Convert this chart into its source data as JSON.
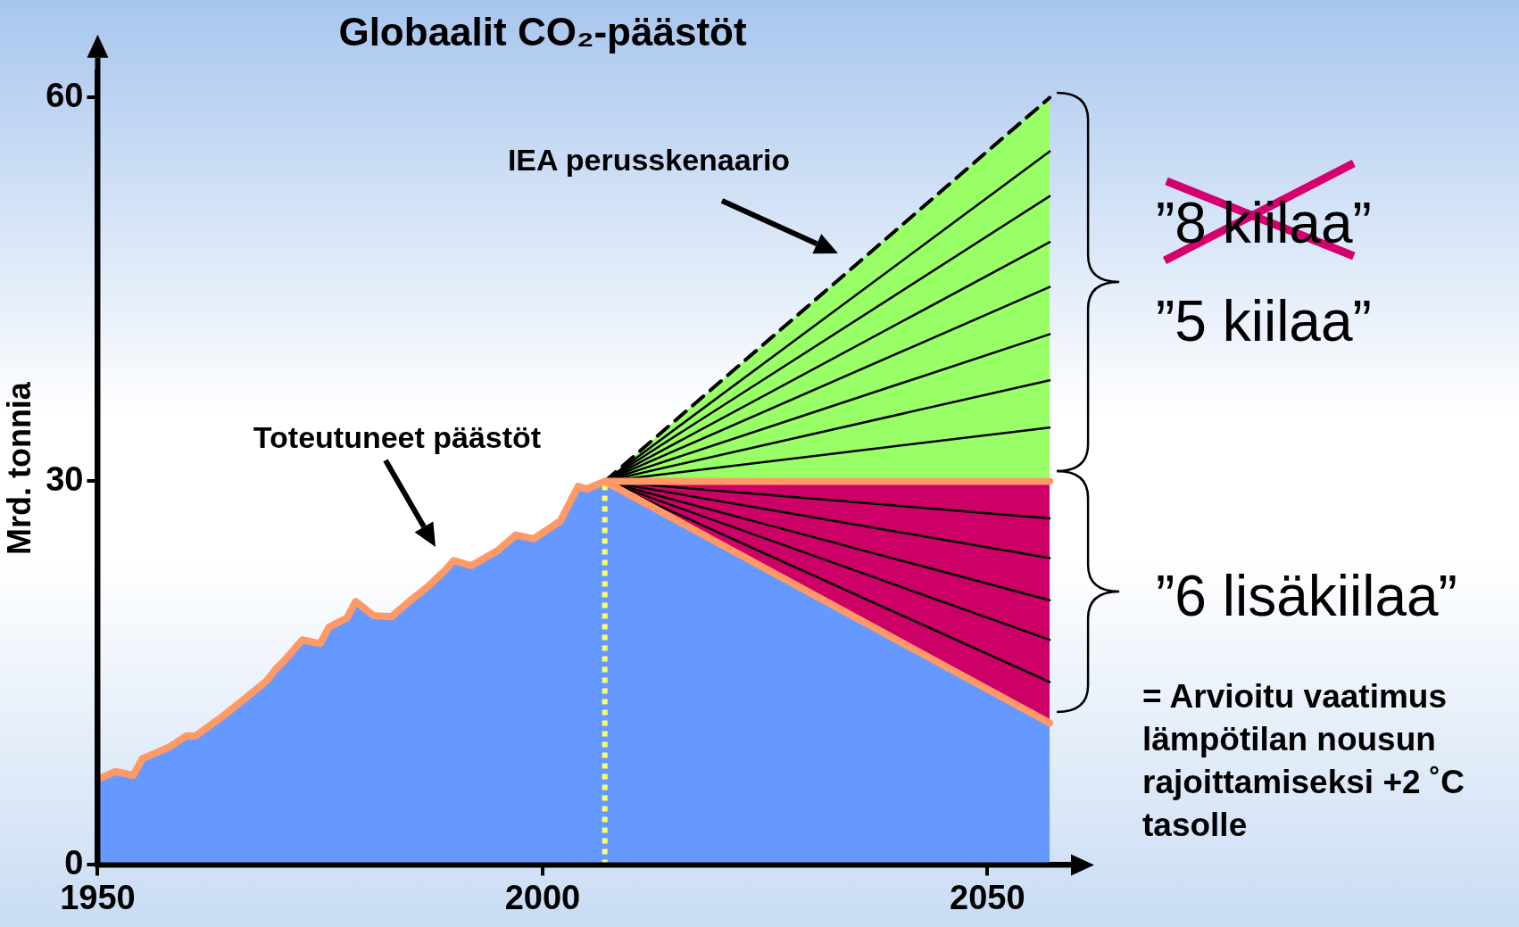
{
  "chart_data": {
    "type": "area",
    "title": "Globaalit CO₂-päästöt",
    "ylabel": "Mrd. tonnia",
    "xlim": [
      1950,
      2061
    ],
    "xticks": [
      1950,
      2000,
      2050
    ],
    "ylim": [
      0,
      62
    ],
    "yticks": [
      0,
      30,
      60
    ],
    "grid": false,
    "legend": false,
    "marker": "none",
    "series": [
      {
        "color": "#99ff66",
        "x": [
          2007,
          2057
        ],
        "values": [
          30,
          60
        ],
        "line_style": "dashed"
      },
      {
        "color": "#cc0066",
        "x": [
          2007,
          2057
        ],
        "values": [
          30,
          11.1
        ]
      },
      {
        "color": "#6699ff",
        "x": [
          1950,
          1952,
          1954,
          1955,
          1957,
          1958,
          1960,
          1961,
          1964,
          1966,
          1969,
          1970,
          1971,
          1973,
          1975,
          1976,
          1978,
          1979,
          1981,
          1983,
          1985,
          1987,
          1989,
          1990,
          1992,
          1995,
          1997,
          1999,
          2002,
          2004,
          2005,
          2007,
          2057
        ],
        "values": [
          6.7,
          7.3,
          7.0,
          8.3,
          8.9,
          9.2,
          10.1,
          10.1,
          11.6,
          12.7,
          14.4,
          15.3,
          16.0,
          17.6,
          17.3,
          18.6,
          19.3,
          20.6,
          19.5,
          19.4,
          20.6,
          21.7,
          23.0,
          23.8,
          23.4,
          24.6,
          25.8,
          25.5,
          26.9,
          29.6,
          29.4,
          30.0,
          11.1
        ]
      },
      {
        "type": "line",
        "color": "#000000",
        "x": [
          2007,
          2057
        ],
        "values": [
          30,
          34.2
        ]
      },
      {
        "type": "line",
        "color": "#000000",
        "x": [
          2007,
          2057
        ],
        "values": [
          30,
          37.9
        ]
      },
      {
        "type": "line",
        "color": "#000000",
        "x": [
          2007,
          2057
        ],
        "values": [
          30,
          41.5
        ]
      },
      {
        "type": "line",
        "color": "#000000",
        "x": [
          2007,
          2057
        ],
        "values": [
          30,
          45.2
        ]
      },
      {
        "type": "line",
        "color": "#000000",
        "x": [
          2007,
          2057
        ],
        "values": [
          30,
          48.7
        ]
      },
      {
        "type": "line",
        "color": "#000000",
        "x": [
          2007,
          2057
        ],
        "values": [
          30,
          52.3
        ]
      },
      {
        "type": "line",
        "color": "#000000",
        "x": [
          2007,
          2057
        ],
        "values": [
          30,
          55.8
        ]
      },
      {
        "type": "line",
        "color": "#000000",
        "x": [
          2007,
          2057
        ],
        "values": [
          30,
          27.1
        ]
      },
      {
        "type": "line",
        "color": "#000000",
        "x": [
          2007,
          2057
        ],
        "values": [
          30,
          24.0
        ]
      },
      {
        "type": "line",
        "color": "#000000",
        "x": [
          2007,
          2057
        ],
        "values": [
          30,
          20.7
        ]
      },
      {
        "type": "line",
        "color": "#000000",
        "x": [
          2007,
          2057
        ],
        "values": [
          30,
          17.6
        ]
      },
      {
        "type": "line",
        "color": "#000000",
        "x": [
          2007,
          2057
        ],
        "values": [
          30,
          14.3
        ]
      },
      {
        "type": "line",
        "color": "#ff9966",
        "x": [
          1950,
          1952,
          1954,
          1955,
          1957,
          1958,
          1960,
          1961,
          1964,
          1966,
          1969,
          1970,
          1971,
          1973,
          1975,
          1976,
          1978,
          1979,
          1981,
          1983,
          1985,
          1987,
          1989,
          1990,
          1992,
          1995,
          1997,
          1999,
          2002,
          2004,
          2005,
          2007,
          2057
        ],
        "values": [
          6.7,
          7.3,
          7.0,
          8.3,
          8.9,
          9.2,
          10.1,
          10.1,
          11.6,
          12.7,
          14.4,
          15.3,
          16.0,
          17.6,
          17.3,
          18.6,
          19.3,
          20.6,
          19.5,
          19.4,
          20.6,
          21.7,
          23.0,
          23.8,
          23.4,
          24.6,
          25.8,
          25.5,
          26.9,
          29.6,
          29.4,
          30.0,
          11.1
        ]
      },
      {
        "type": "line",
        "color": "#ff9966",
        "x": [
          2007,
          2057
        ],
        "values": [
          30,
          30
        ]
      }
    ],
    "ref_lines": [
      {
        "axis": "x",
        "value": 2007,
        "color": "#ffff66",
        "line_style": "dotted"
      }
    ],
    "annotations": [
      "IEA perusskenaario",
      "Toteutuneet päästöt",
      "”8 kiilaa”",
      "”5 kiilaa”",
      "”6 lisäkiilaa”",
      "= Arvioitu vaatimus lämpötilan nousun rajoittamiseksi +2 ˚C tasolle"
    ]
  }
}
